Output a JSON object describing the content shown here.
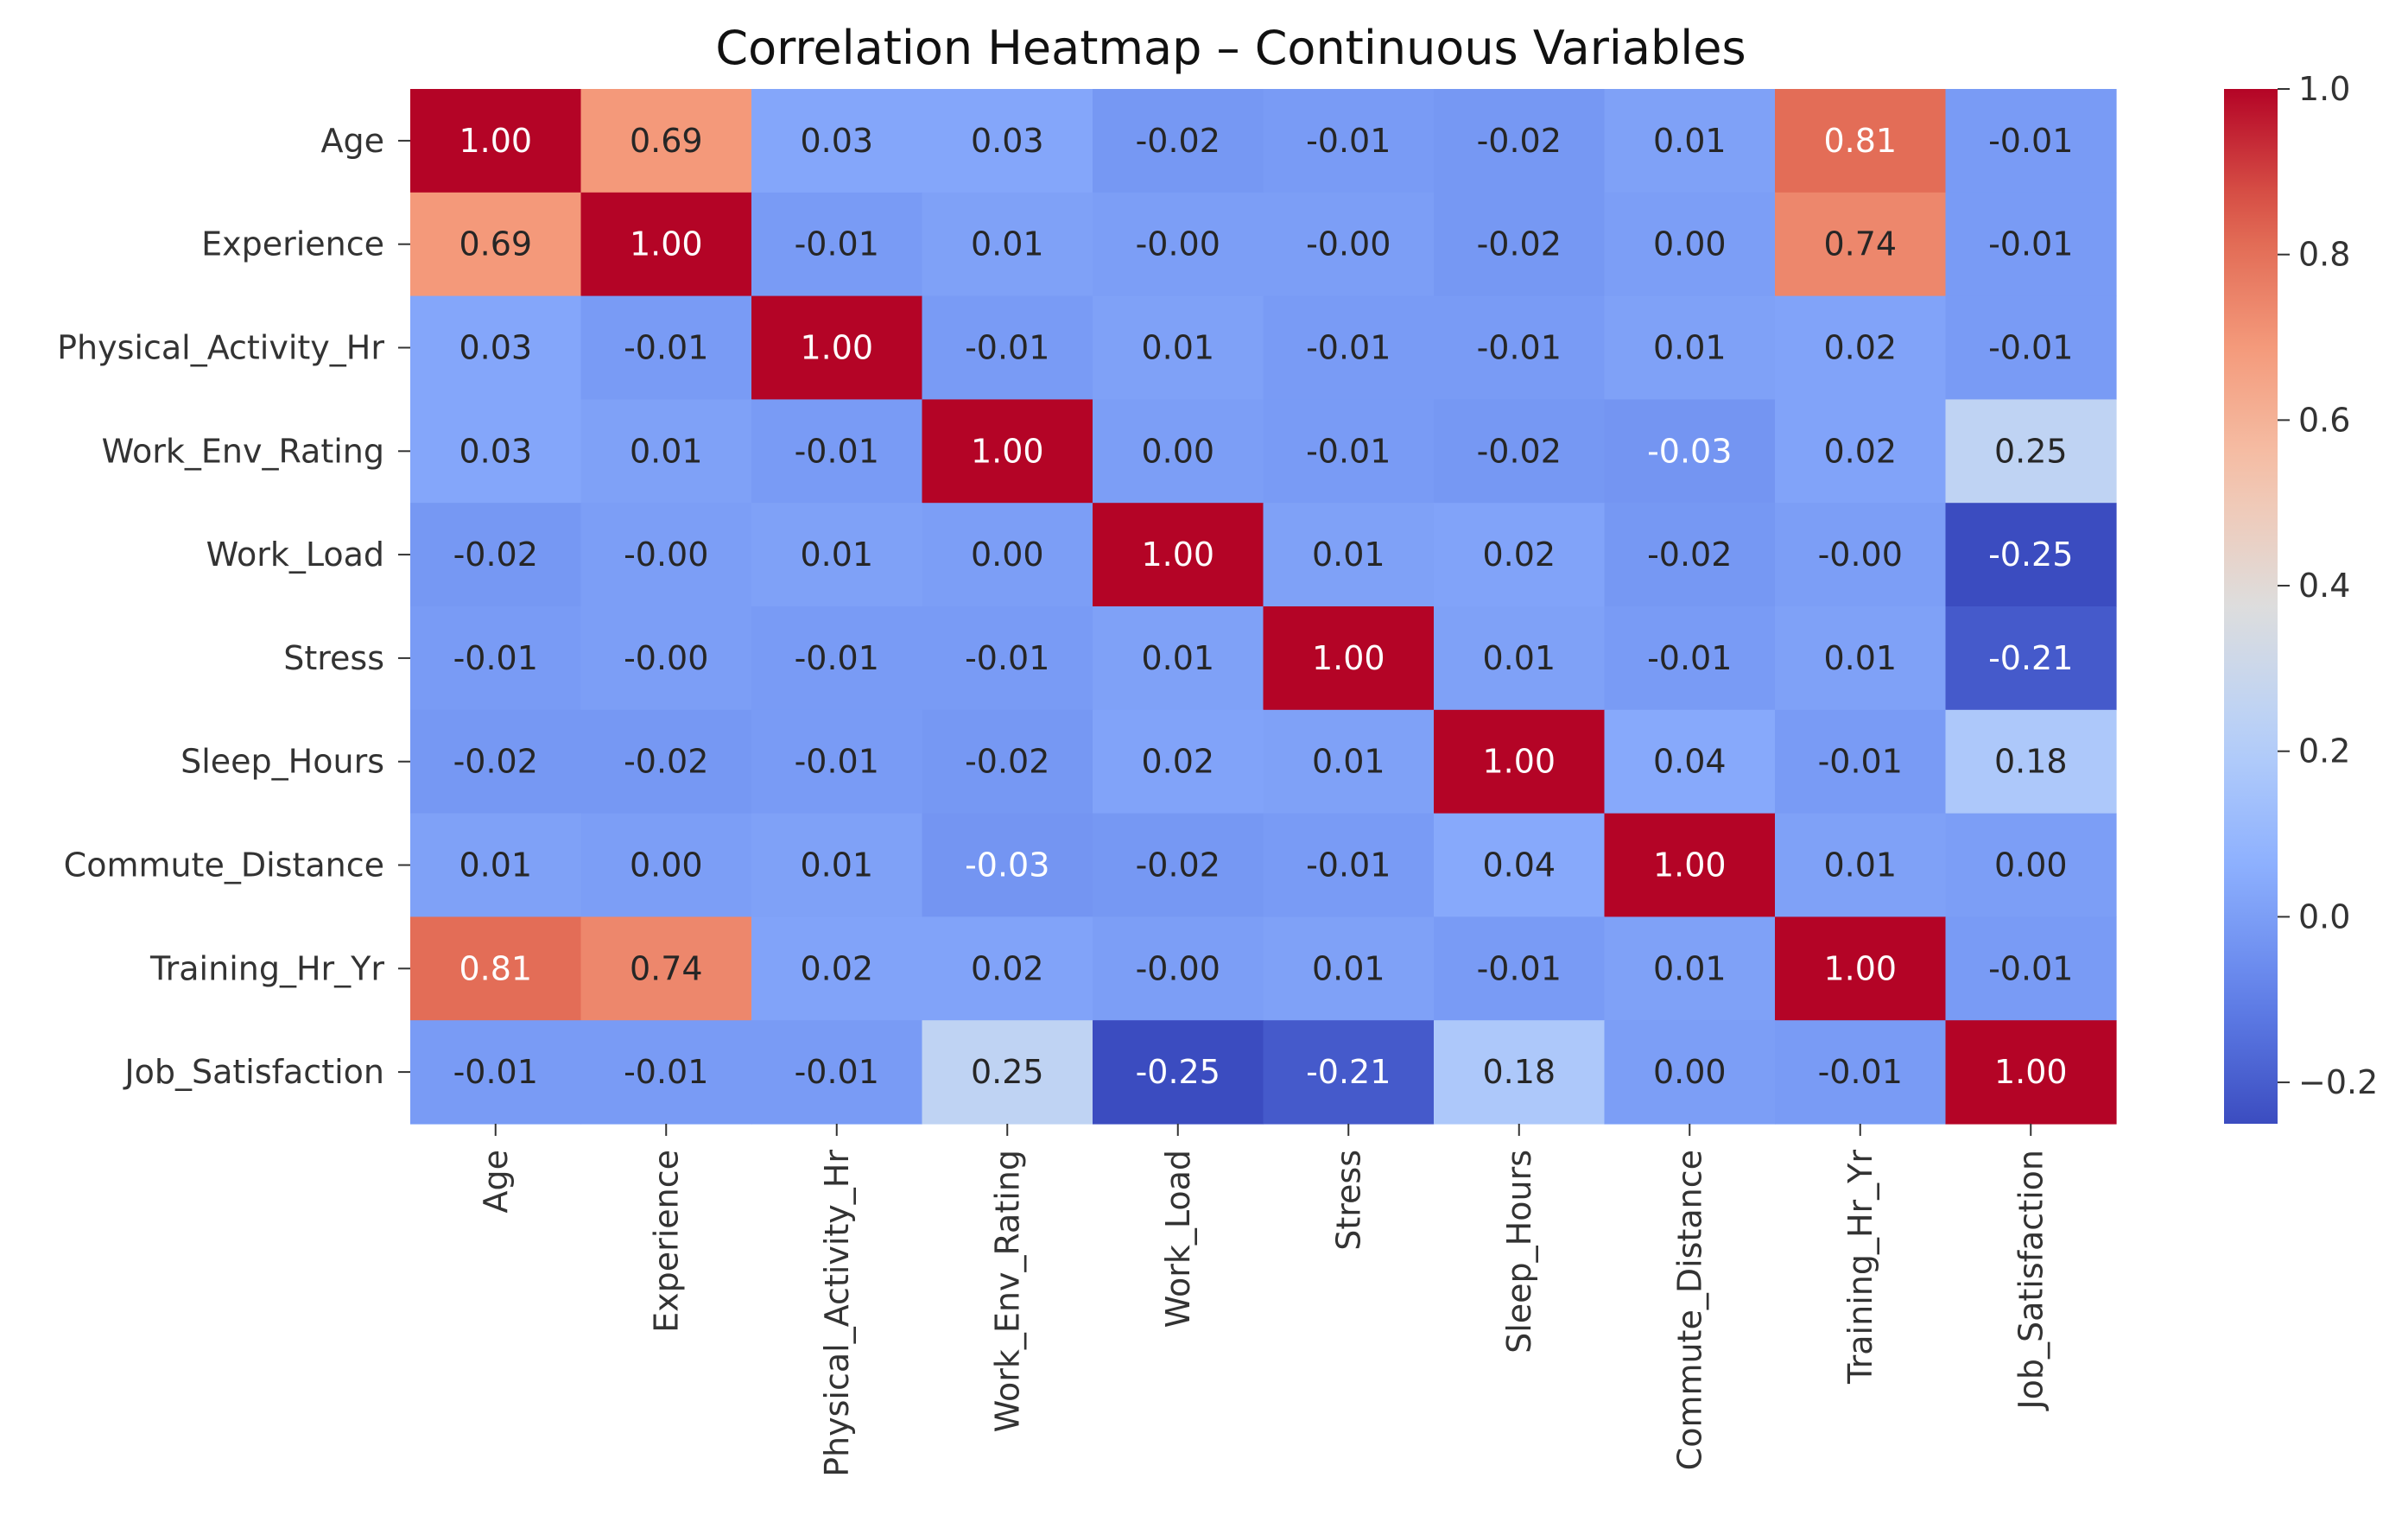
{
  "chart_data": {
    "type": "heatmap",
    "title": "Correlation Heatmap – Continuous Variables",
    "xlabel": "",
    "ylabel": "",
    "variables": [
      "Age",
      "Experience",
      "Physical_Activity_Hr",
      "Work_Env_Rating",
      "Work_Load",
      "Stress",
      "Sleep_Hours",
      "Commute_Distance",
      "Training_Hr_Yr",
      "Job_Satisfaction"
    ],
    "matrix": [
      [
        1.0,
        0.69,
        0.03,
        0.03,
        -0.02,
        -0.01,
        -0.02,
        0.01,
        0.81,
        -0.01
      ],
      [
        0.69,
        1.0,
        -0.01,
        0.01,
        -0.0,
        -0.0,
        -0.02,
        0.0,
        0.74,
        -0.01
      ],
      [
        0.03,
        -0.01,
        1.0,
        -0.01,
        0.01,
        -0.01,
        -0.01,
        0.01,
        0.02,
        -0.01
      ],
      [
        0.03,
        0.01,
        -0.01,
        1.0,
        0.0,
        -0.01,
        -0.02,
        -0.03,
        0.02,
        0.25
      ],
      [
        -0.02,
        -0.0,
        0.01,
        0.0,
        1.0,
        0.01,
        0.02,
        -0.02,
        -0.0,
        -0.25
      ],
      [
        -0.01,
        -0.0,
        -0.01,
        -0.01,
        0.01,
        1.0,
        0.01,
        -0.01,
        0.01,
        -0.21
      ],
      [
        -0.02,
        -0.02,
        -0.01,
        -0.02,
        0.02,
        0.01,
        1.0,
        0.04,
        -0.01,
        0.18
      ],
      [
        0.01,
        0.0,
        0.01,
        -0.03,
        -0.02,
        -0.01,
        0.04,
        1.0,
        0.01,
        0.0
      ],
      [
        0.81,
        0.74,
        0.02,
        0.02,
        -0.0,
        0.01,
        -0.01,
        0.01,
        1.0,
        -0.01
      ],
      [
        -0.01,
        -0.01,
        -0.01,
        0.25,
        -0.25,
        -0.21,
        0.18,
        0.0,
        -0.01,
        1.0
      ]
    ],
    "value_format": "0.00",
    "color_scale": {
      "name": "coolwarm",
      "range": [
        -0.25,
        1.0
      ],
      "ticks": [
        -0.2,
        0.0,
        0.2,
        0.4,
        0.6,
        0.8,
        1.0
      ],
      "tick_labels": [
        "−0.2",
        "0.0",
        "0.2",
        "0.4",
        "0.6",
        "0.8",
        "1.0"
      ]
    },
    "grid": false,
    "colorbar_placement": "right"
  }
}
